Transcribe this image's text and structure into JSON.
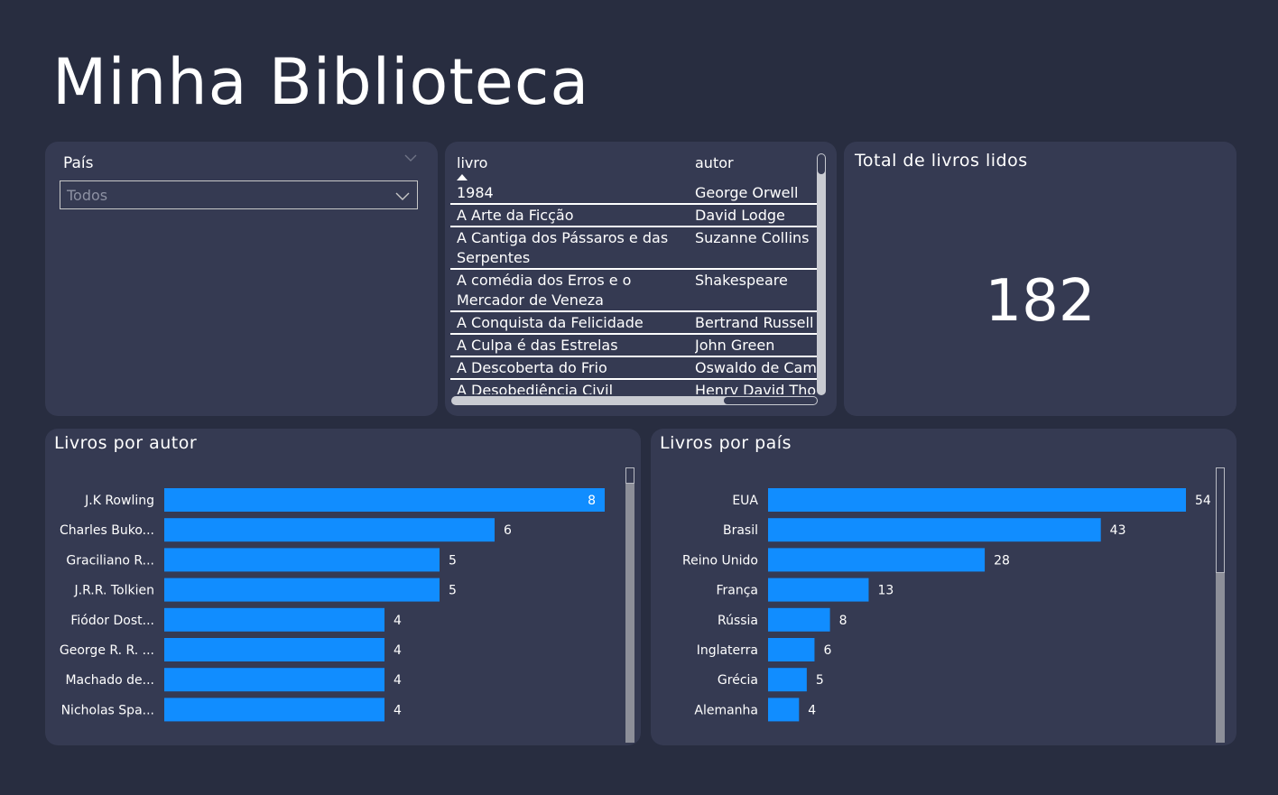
{
  "page": {
    "title": "Minha Biblioteca"
  },
  "slicer": {
    "label": "País",
    "selected": "Todos"
  },
  "table": {
    "headers": {
      "book": "livro",
      "author": "autor"
    },
    "rows": [
      {
        "book": "1984",
        "author": "George Orwell"
      },
      {
        "book": "A Arte da Ficção",
        "author": "David Lodge"
      },
      {
        "book": "A Cantiga dos Pássaros e das Serpentes",
        "author": "Suzanne Collins"
      },
      {
        "book": "A comédia dos Erros e o Mercador de Veneza",
        "author": "Shakespeare"
      },
      {
        "book": "A Conquista da Felicidade",
        "author": "Bertrand Russell"
      },
      {
        "book": "A Culpa é das Estrelas",
        "author": "John Green"
      },
      {
        "book": "A Descoberta do Frio",
        "author": "Oswaldo de Camargo"
      },
      {
        "book": "A Desobediência Civil",
        "author": "Henry David Thoreau"
      }
    ]
  },
  "kpi": {
    "title": "Total de livros lidos",
    "value": "182"
  },
  "chart_data": [
    {
      "type": "bar",
      "orientation": "horizontal",
      "title": "Livros por autor",
      "categories": [
        "J.K Rowling",
        "Charles Buko...",
        "Graciliano R...",
        "J.R.R. Tolkien",
        "Fiódor Dost...",
        "George R. R. ...",
        "Machado de...",
        "Nicholas Spa..."
      ],
      "values": [
        8,
        6,
        5,
        5,
        4,
        4,
        4,
        4
      ],
      "xlim": [
        0,
        8
      ],
      "color": "#118dff",
      "data_labels": true,
      "grid": false
    },
    {
      "type": "bar",
      "orientation": "horizontal",
      "title": "Livros por país",
      "categories": [
        "EUA",
        "Brasil",
        "Reino Unido",
        "França",
        "Rússia",
        "Inglaterra",
        "Grécia",
        "Alemanha"
      ],
      "values": [
        54,
        43,
        28,
        13,
        8,
        6,
        5,
        4
      ],
      "xlim": [
        0,
        54
      ],
      "color": "#118dff",
      "data_labels": true,
      "grid": false
    }
  ],
  "colors": {
    "background": "#282d40",
    "card": "#353a52",
    "bar": "#118dff"
  }
}
